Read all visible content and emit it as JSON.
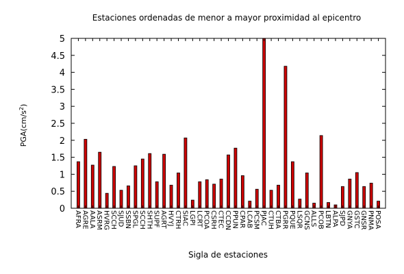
{
  "chart_data": {
    "type": "bar",
    "title": "Estaciones ordenadas de menor a mayor proximidad al epicentro",
    "xlabel": "Sigla de estaciones",
    "ylabel_base": "PGA(cm/s",
    "ylabel_sup": "2",
    "ylabel_close": ")",
    "ylim": [
      0,
      5
    ],
    "yticks": [
      "0",
      "0.5",
      "1",
      "1.5",
      "2",
      "2.5",
      "3",
      "3.5",
      "4",
      "4.5",
      "5"
    ],
    "grid": false,
    "bar_color": "#cc0000",
    "categories": [
      "AFRA",
      "AGRE",
      "AALA",
      "ASRM",
      "HVRG",
      "SCCH",
      "SJUD",
      "SSBN",
      "SPGL",
      "SCCH",
      "SHTH",
      "SUPF",
      "AGRT",
      "HVYJ",
      "CTRH",
      "SIAC",
      "LGPI",
      "LCRT",
      "PCOA",
      "CSRH",
      "CTEC",
      "CCDN",
      "PPUN",
      "CPAR",
      "LCAB",
      "PCSM",
      "PJAC",
      "CTUH",
      "CTBA",
      "PGRR",
      "PQUE",
      "LSQR",
      "GCNS",
      "ALLS",
      "PCOB",
      "LBTN",
      "ALPA",
      "SJPD",
      "GNYA",
      "GSTC",
      "GNSR",
      "PNMA",
      "POSA"
    ],
    "values": [
      1.37,
      2.03,
      1.27,
      1.65,
      0.44,
      1.23,
      0.53,
      0.66,
      1.25,
      1.45,
      1.61,
      0.78,
      1.59,
      0.68,
      1.04,
      2.07,
      0.24,
      0.78,
      0.84,
      0.71,
      0.86,
      1.57,
      1.77,
      0.96,
      0.21,
      0.56,
      5.0,
      0.53,
      0.68,
      4.18,
      1.37,
      0.27,
      1.04,
      0.15,
      2.14,
      0.17,
      0.1,
      0.64,
      0.86,
      1.05,
      0.64,
      0.74,
      0.21
    ]
  }
}
